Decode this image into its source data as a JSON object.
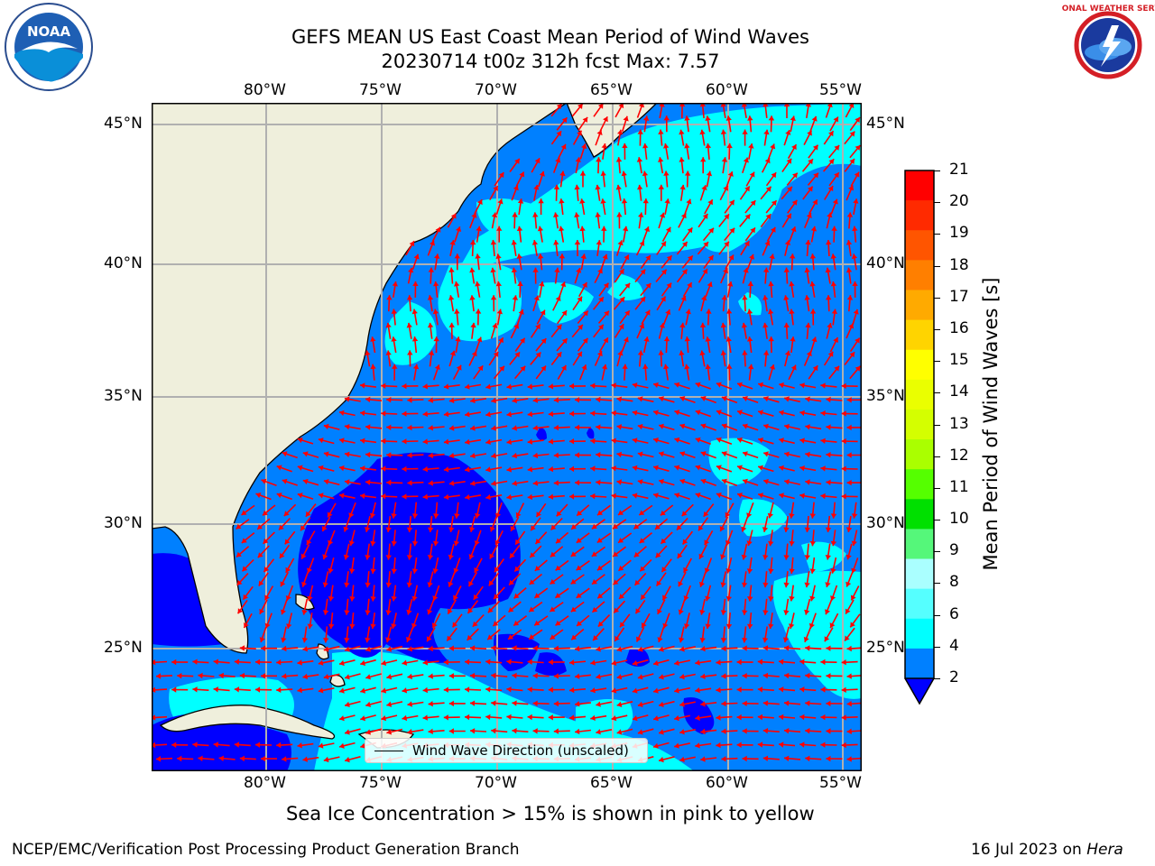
{
  "header": {
    "title_line1": "GEFS MEAN US East Coast Mean Period of Wind Waves",
    "title_line2": "20230714 t00z 312h fcst   Max: 7.57"
  },
  "logos": {
    "left": {
      "name": "noaa-logo",
      "text": "NOAA"
    },
    "right": {
      "name": "nws-logo",
      "text": "NATIONAL WEATHER SERVICE"
    }
  },
  "map": {
    "lon_labels": [
      "80°W",
      "75°W",
      "70°W",
      "65°W",
      "60°W",
      "55°W"
    ],
    "lat_labels": [
      "45°N",
      "40°N",
      "35°N",
      "30°N",
      "25°N"
    ],
    "land_color": "#efefdc",
    "grid_color": "#b0b0b0",
    "arrow_color": "#ff0000"
  },
  "legend": {
    "label": "Wind Wave Direction (unscaled)"
  },
  "colorbar": {
    "title": "Mean Period of Wind Waves [s]",
    "ticks": [
      "21",
      "20",
      "19",
      "18",
      "17",
      "16",
      "15",
      "14",
      "13",
      "12",
      "11",
      "10",
      "9",
      "8",
      "6",
      "4",
      "2"
    ],
    "colors": [
      "#ff0000",
      "#ff2a00",
      "#ff5500",
      "#ff7f00",
      "#ffaa00",
      "#ffd400",
      "#ffff00",
      "#eaff00",
      "#d4ff00",
      "#aaff00",
      "#55ff00",
      "#00e000",
      "#55f77a",
      "#aaffff",
      "#55ffff",
      "#00ffff",
      "#0080ff"
    ],
    "extend_color": "#0000ff"
  },
  "notes": {
    "sea_ice": "Sea Ice Concentration > 15% is shown in pink to yellow"
  },
  "footer": {
    "left": "NCEP/EMC/Verification Post Processing Product Generation Branch",
    "date": "16 Jul 2023 on ",
    "host": "Hera"
  }
}
